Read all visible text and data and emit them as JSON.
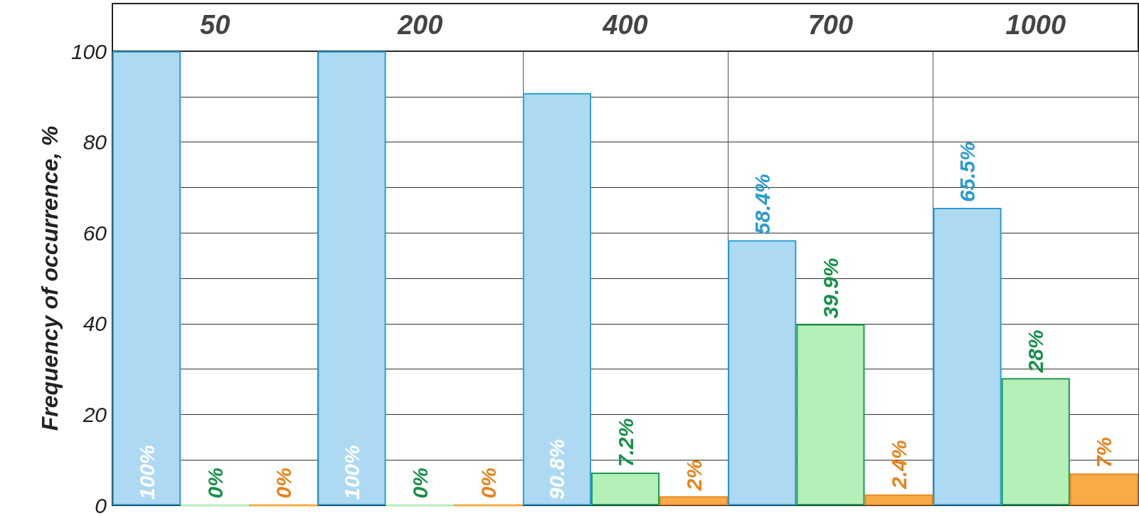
{
  "chart_data": {
    "type": "bar",
    "ylabel": "Frequency of occurrence, %",
    "categories": [
      "50",
      "200",
      "400",
      "700",
      "1000"
    ],
    "series": [
      {
        "color": "#aed9f2",
        "values": [
          100,
          100,
          90.8,
          58.4,
          65.5
        ],
        "value_labels": [
          "100%",
          "100%",
          "90.8%",
          "58.4%",
          "65.5%"
        ]
      },
      {
        "color": "#b5f0b8",
        "values": [
          0,
          0,
          7.2,
          39.9,
          28
        ],
        "value_labels": [
          "0%",
          "0%",
          "7.2%",
          "39.9%",
          "28%"
        ]
      },
      {
        "color": "#f9ab48",
        "values": [
          0,
          0,
          2,
          2.4,
          7
        ],
        "value_labels": [
          "0%",
          "0%",
          "2%",
          "2.4%",
          "7%"
        ]
      }
    ],
    "ylim": [
      0,
      100
    ],
    "yticks": [
      0,
      20,
      40,
      60,
      80,
      100
    ],
    "grid": true
  }
}
